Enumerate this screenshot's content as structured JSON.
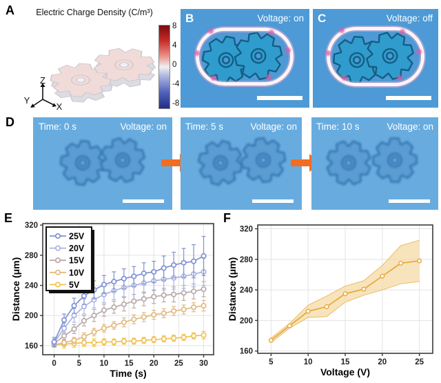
{
  "panels": {
    "a": {
      "label": "A",
      "title": "Electric Charge Density (C/m³)",
      "colorbar_ticks": [
        "8",
        "4",
        "0",
        "-4",
        "-8"
      ],
      "axis_triad": {
        "z": "Z",
        "y": "Y",
        "x": "X"
      }
    },
    "b": {
      "label": "B",
      "status": "Voltage: on"
    },
    "c": {
      "label": "C",
      "status": "Voltage: off"
    },
    "d": {
      "label": "D",
      "frames": [
        {
          "time": "Time: 0 s",
          "status": "Voltage: on"
        },
        {
          "time": "Time: 5 s",
          "status": "Voltage: on"
        },
        {
          "time": "Time: 10 s",
          "status": "Voltage: on"
        }
      ]
    },
    "e": {
      "label": "E"
    },
    "f": {
      "label": "F"
    }
  },
  "colors": {
    "micro_bg": "#4d9ad6",
    "gear_fill": "#2f9ccd",
    "gear_stroke": "#145e84",
    "d_bg": "#68acdf",
    "d_gear_fill": "#5b9dd3",
    "d_gear_stroke": "#2f6dab",
    "arrow_orange": "#f26d21",
    "sim_gear_fill": "#f1dbd8",
    "sim_gear_stroke": "#c8c5cd",
    "sim_gear_under": "#dcdce2",
    "sim_hole": "#eef0f6"
  },
  "chart_data": [
    {
      "id": "E",
      "type": "line",
      "title": "",
      "xlabel": "Time (s)",
      "ylabel": "Distance (μm)",
      "x": [
        0,
        2,
        4,
        6,
        8,
        10,
        12,
        14,
        16,
        18,
        20,
        22,
        24,
        26,
        28,
        30
      ],
      "xticks": [
        0,
        5,
        10,
        15,
        20,
        25,
        30
      ],
      "yticks": [
        160,
        200,
        240,
        280,
        320
      ],
      "xlim": [
        -2.3,
        32
      ],
      "ylim": [
        148,
        322
      ],
      "grid": true,
      "legend_position": "top-left",
      "series": [
        {
          "name": "25V",
          "color": "#7f90d2",
          "values": [
            165,
            194,
            213,
            226,
            234,
            241,
            245,
            249,
            252,
            256,
            258,
            263,
            267,
            270,
            272,
            279
          ],
          "err": [
            6,
            8,
            10,
            11,
            12,
            12,
            13,
            13,
            13,
            14,
            14,
            16,
            17,
            19,
            22,
            26
          ]
        },
        {
          "name": "20V",
          "color": "#a9b3e3",
          "values": [
            164,
            183,
            200,
            212,
            221,
            228,
            233,
            237,
            240,
            243,
            246,
            248,
            250,
            252,
            255,
            258
          ],
          "err": [
            5,
            7,
            9,
            10,
            11,
            11,
            12,
            12,
            12,
            13,
            13,
            14,
            15,
            16,
            17,
            18
          ]
        },
        {
          "name": "15V",
          "color": "#b9a9ab",
          "values": [
            163,
            173,
            182,
            193,
            200,
            207,
            211,
            215,
            219,
            222,
            225,
            227,
            228,
            230,
            232,
            235
          ],
          "err": [
            4,
            5,
            6,
            7,
            8,
            8,
            8,
            9,
            9,
            9,
            9,
            9,
            10,
            10,
            10,
            10
          ]
        },
        {
          "name": "10V",
          "color": "#e2b97e",
          "values": [
            161,
            164,
            167,
            172,
            178,
            183,
            187,
            191,
            195,
            198,
            201,
            203,
            206,
            208,
            211,
            213
          ],
          "err": [
            3,
            4,
            4,
            5,
            5,
            5,
            5,
            6,
            6,
            6,
            6,
            6,
            6,
            6,
            6,
            7
          ]
        },
        {
          "name": "5V",
          "color": "#f2c24f",
          "values": [
            161,
            162,
            163,
            164,
            164,
            165,
            165,
            166,
            166,
            167,
            168,
            169,
            170,
            171,
            173,
            174
          ],
          "err": [
            3,
            5,
            5,
            5,
            5,
            4,
            4,
            4,
            4,
            4,
            4,
            4,
            4,
            4,
            4,
            5
          ]
        }
      ]
    },
    {
      "id": "F",
      "type": "line-band",
      "title": "",
      "xlabel": "Voltage (V)",
      "ylabel": "Distance (μm)",
      "x": [
        5,
        7.5,
        10,
        12.5,
        15,
        17.5,
        20,
        22.5,
        25
      ],
      "y": [
        174,
        193,
        212,
        218,
        235,
        241,
        258,
        275,
        278
      ],
      "band_lower": [
        171,
        190,
        204,
        205,
        224,
        233,
        240,
        248,
        251
      ],
      "band_upper": [
        177,
        196,
        220,
        232,
        245,
        252,
        272,
        298,
        305
      ],
      "xticks": [
        5,
        10,
        15,
        20,
        25
      ],
      "yticks": [
        160,
        200,
        240,
        280,
        320
      ],
      "xlim": [
        3.2,
        26.8
      ],
      "ylim": [
        157,
        325
      ],
      "grid": true,
      "color": "#e9a93e",
      "band_color": "#f3d9a0",
      "band_edge": "#eec06e"
    }
  ]
}
